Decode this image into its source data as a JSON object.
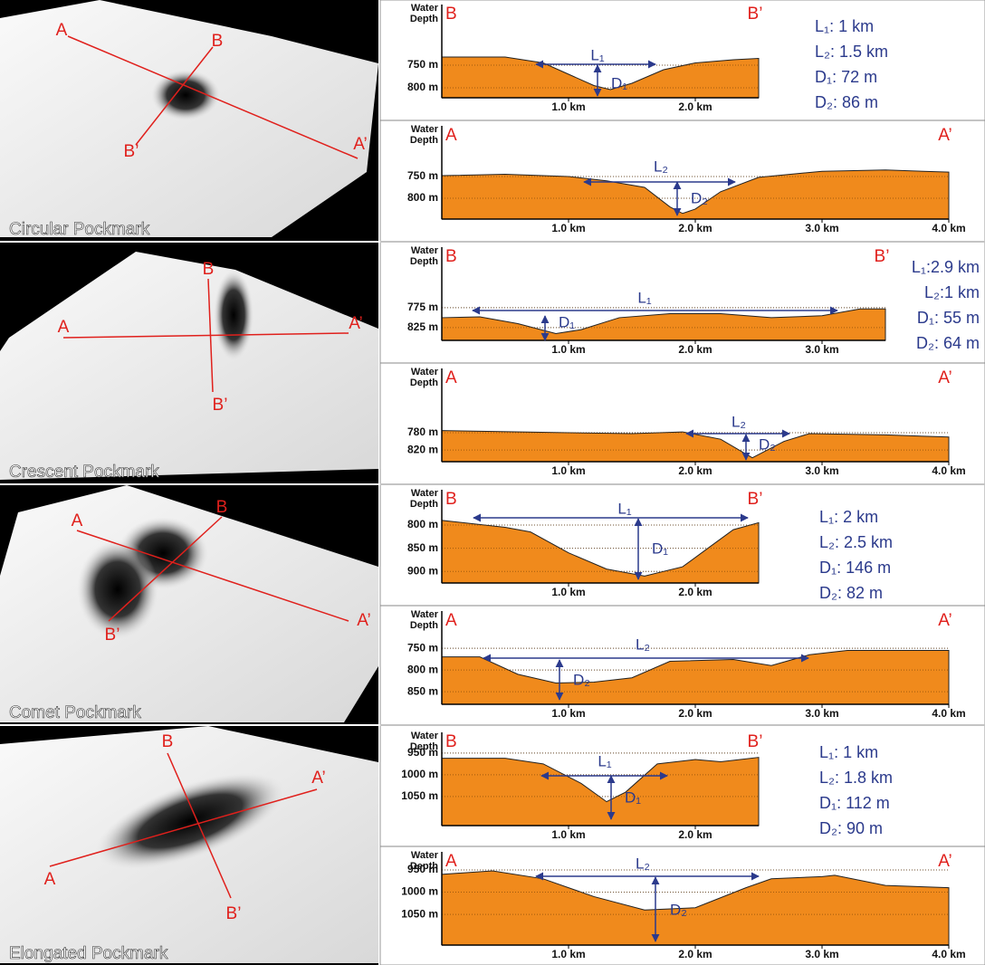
{
  "panels": [
    {
      "name": "Circular Pockmark",
      "map_labels": [
        "A",
        "B",
        "B’",
        "A’"
      ],
      "measurements": [
        "L₁: 1 km",
        "L₂: 1.5 km",
        "D₁: 72 m",
        "D₂: 86 m"
      ],
      "profiles": [
        {
          "type": "area",
          "y_label": [
            "Water",
            "Depth"
          ],
          "start": "B",
          "end": "B’",
          "span_label": "L₁",
          "depth_label": "D₁",
          "color": "#f08a1c",
          "x": [
            0,
            0.5,
            0.8,
            1.0,
            1.2,
            1.33,
            1.5,
            1.75,
            2.0,
            2.3,
            2.5
          ],
          "values": [
            732,
            732,
            745,
            770,
            795,
            804,
            790,
            760,
            745,
            738,
            735
          ],
          "xlim": [
            0,
            2.5
          ],
          "ylim": [
            822,
            654
          ],
          "xticks": [
            {
              "value": 1,
              "label": "1.0 km"
            },
            {
              "value": 2,
              "label": "2.0 km"
            }
          ],
          "yticks": [
            {
              "value": 750,
              "label": "750 m"
            },
            {
              "value": 800,
              "label": "800 m"
            }
          ]
        },
        {
          "type": "area",
          "y_label": [
            "Water",
            "Depth"
          ],
          "start": "A",
          "end": "A’",
          "span_label": "L₂",
          "depth_label": "D₂",
          "color": "#f08a1c",
          "x": [
            0,
            0.5,
            1.0,
            1.3,
            1.6,
            1.8,
            1.9,
            2.0,
            2.2,
            2.5,
            3.0,
            3.5,
            4.0
          ],
          "values": [
            748,
            745,
            750,
            760,
            775,
            820,
            835,
            825,
            785,
            752,
            738,
            735,
            740
          ],
          "xlim": [
            0,
            4
          ],
          "ylim": [
            848,
            673
          ],
          "xticks": [
            {
              "value": 1,
              "label": "1.0 km"
            },
            {
              "value": 2,
              "label": "2.0 km"
            },
            {
              "value": 3,
              "label": "3.0 km"
            },
            {
              "value": 4,
              "label": "4.0 km"
            }
          ],
          "yticks": [
            {
              "value": 750,
              "label": "750 m"
            },
            {
              "value": 800,
              "label": "800 m"
            }
          ]
        }
      ]
    },
    {
      "name": "Crescent Pockmark",
      "map_labels": [
        "A",
        "B",
        "B’",
        "A’"
      ],
      "measurements": [
        "L₁:2.9 km",
        "L₂:1 km",
        "D₁: 55 m",
        "D₂: 64 m"
      ],
      "profiles": [
        {
          "type": "area",
          "y_label": [
            "Water",
            "Depth"
          ],
          "start": "B",
          "end": "B’",
          "span_label": "L₁",
          "depth_label": "D₁",
          "color": "#f08a1c",
          "x": [
            0,
            0.3,
            0.6,
            0.9,
            1.1,
            1.4,
            1.8,
            2.2,
            2.6,
            3.0,
            3.3,
            3.5
          ],
          "values": [
            800,
            798,
            815,
            840,
            830,
            800,
            790,
            790,
            800,
            795,
            778,
            778
          ],
          "xlim": [
            0,
            3.5
          ],
          "ylim": [
            857,
            666
          ],
          "xticks": [
            {
              "value": 1,
              "label": "1.0 km"
            },
            {
              "value": 2,
              "label": "2.0 km"
            },
            {
              "value": 3,
              "label": "3.0 km"
            }
          ],
          "yticks": [
            {
              "value": 775,
              "label": "775 m"
            },
            {
              "value": 825,
              "label": "825 m"
            }
          ]
        },
        {
          "type": "area",
          "y_label": [
            "Water",
            "Depth"
          ],
          "start": "A",
          "end": "A’",
          "span_label": "L₂",
          "depth_label": "D₂",
          "color": "#f08a1c",
          "x": [
            0,
            1.0,
            1.5,
            1.9,
            2.2,
            2.45,
            2.7,
            2.9,
            3.5,
            4.0
          ],
          "values": [
            775,
            780,
            782,
            778,
            795,
            838,
            800,
            782,
            785,
            790
          ],
          "xlim": [
            0,
            4
          ],
          "ylim": [
            847,
            671
          ],
          "xticks": [
            {
              "value": 1,
              "label": "1.0 km"
            },
            {
              "value": 2,
              "label": "2.0 km"
            },
            {
              "value": 3,
              "label": "3.0 km"
            },
            {
              "value": 4,
              "label": "4.0 km"
            }
          ],
          "yticks": [
            {
              "value": 780,
              "label": "780 m"
            },
            {
              "value": 820,
              "label": "820 m"
            }
          ]
        }
      ]
    },
    {
      "name": "Comet Pockmark",
      "map_labels": [
        "A",
        "B",
        "B’",
        "A’"
      ],
      "measurements": [
        "L₁: 2 km",
        "L₂: 2.5 km",
        "D₁: 146 m",
        "D₂: 82 m"
      ],
      "profiles": [
        {
          "type": "area",
          "y_label": [
            "Water",
            "Depth"
          ],
          "start": "B",
          "end": "B’",
          "span_label": "L₁",
          "depth_label": "D₁",
          "color": "#f08a1c",
          "x": [
            0,
            0.5,
            0.7,
            1.0,
            1.3,
            1.6,
            1.9,
            2.1,
            2.3,
            2.5
          ],
          "values": [
            790,
            805,
            815,
            860,
            895,
            910,
            890,
            850,
            810,
            795
          ],
          "xlim": [
            0,
            2.5
          ],
          "ylim": [
            925,
            761
          ],
          "xticks": [
            {
              "value": 1,
              "label": "1.0 km"
            },
            {
              "value": 2,
              "label": "2.0 km"
            }
          ],
          "yticks": [
            {
              "value": 800,
              "label": "800 m"
            },
            {
              "value": 850,
              "label": "850 m"
            },
            {
              "value": 900,
              "label": "900 m"
            }
          ]
        },
        {
          "type": "area",
          "y_label": [
            "Water",
            "Depth"
          ],
          "start": "A",
          "end": "A’",
          "span_label": "L₂",
          "depth_label": "D₂",
          "color": "#f08a1c",
          "x": [
            0,
            0.3,
            0.6,
            0.9,
            1.2,
            1.5,
            1.8,
            2.3,
            2.6,
            2.9,
            3.2,
            4.0
          ],
          "values": [
            770,
            770,
            810,
            830,
            828,
            818,
            780,
            776,
            790,
            765,
            755,
            755
          ],
          "xlim": [
            0,
            4
          ],
          "ylim": [
            879,
            704
          ],
          "xticks": [
            {
              "value": 1,
              "label": "1.0 km"
            },
            {
              "value": 2,
              "label": "2.0 km"
            },
            {
              "value": 3,
              "label": "3.0 km"
            },
            {
              "value": 4,
              "label": "4.0 km"
            }
          ],
          "yticks": [
            {
              "value": 750,
              "label": "750 m"
            },
            {
              "value": 800,
              "label": "800 m"
            },
            {
              "value": 850,
              "label": "850 m"
            }
          ]
        }
      ]
    },
    {
      "name": "Elongated Pockmark",
      "map_labels": [
        "A",
        "B",
        "B’",
        "A’"
      ],
      "measurements": [
        "L₁: 1 km",
        "L₂: 1.8 km",
        "D₁: 112 m",
        "D₂: 90 m"
      ],
      "profiles": [
        {
          "type": "area",
          "y_label": [
            "Water",
            "Depth"
          ],
          "start": "B",
          "end": "B’",
          "span_label": "L₁",
          "depth_label": "D₁",
          "color": "#f08a1c",
          "x": [
            0,
            0.5,
            0.8,
            1.1,
            1.3,
            1.45,
            1.7,
            2.0,
            2.2,
            2.5
          ],
          "values": [
            962,
            962,
            975,
            1020,
            1062,
            1040,
            975,
            965,
            970,
            960
          ],
          "xlim": [
            0,
            2.5
          ],
          "ylim": [
            1117,
            942
          ],
          "xticks": [
            {
              "value": 1,
              "label": "1.0 km"
            },
            {
              "value": 2,
              "label": "2.0 km"
            }
          ],
          "yticks": [
            {
              "value": 950,
              "label": "950 m"
            },
            {
              "value": 1000,
              "label": "1000 m"
            },
            {
              "value": 1050,
              "label": "1050 m"
            }
          ]
        },
        {
          "type": "area",
          "y_label": [
            "Water",
            "Depth"
          ],
          "start": "A",
          "end": "A’",
          "span_label": "L₂",
          "depth_label": "D₂",
          "color": "#f08a1c",
          "x": [
            0,
            0.4,
            0.8,
            1.2,
            1.6,
            2.0,
            2.4,
            2.6,
            3.0,
            3.1,
            3.5,
            4.0
          ],
          "values": [
            960,
            952,
            970,
            1010,
            1040,
            1035,
            990,
            970,
            965,
            962,
            985,
            990
          ],
          "xlim": [
            0,
            4
          ],
          "ylim": [
            1119,
            948
          ],
          "xticks": [
            {
              "value": 1,
              "label": "1.0 km"
            },
            {
              "value": 2,
              "label": "2.0 km"
            },
            {
              "value": 3,
              "label": "3.0 km"
            },
            {
              "value": 4,
              "label": "4.0 km"
            }
          ],
          "yticks": [
            {
              "value": 950,
              "label": "950 m"
            },
            {
              "value": 1000,
              "label": "1000 m"
            },
            {
              "value": 1050,
              "label": "1050 m"
            }
          ]
        }
      ]
    }
  ]
}
